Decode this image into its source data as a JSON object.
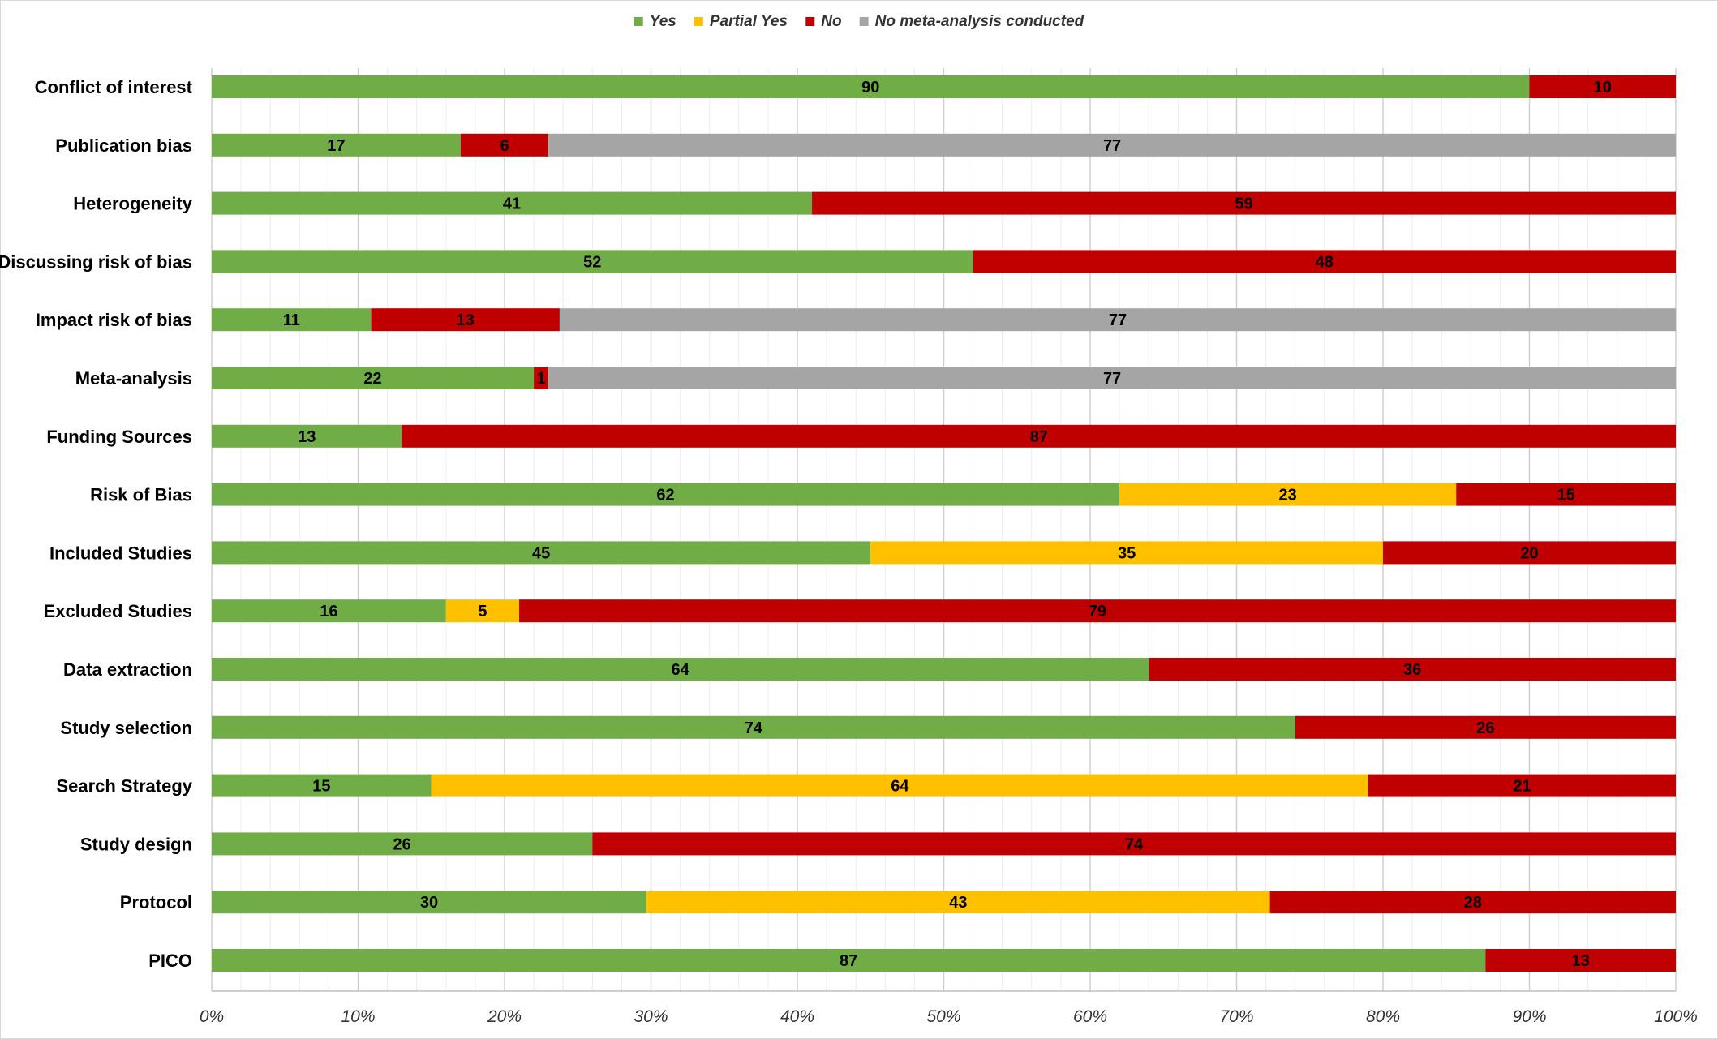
{
  "chart_data": {
    "type": "bar",
    "orientation": "horizontal",
    "stacked": "percent",
    "categories": [
      "Conflict of interest",
      "Publication bias",
      "Heterogeneity",
      "Discussing risk of bias",
      "Impact risk of bias",
      "Meta-analysis",
      "Funding Sources",
      "Risk of Bias",
      "Included Studies",
      "Excluded Studies",
      "Data extraction",
      "Study selection",
      "Search Strategy",
      "Study design",
      "Protocol",
      "PICO"
    ],
    "series": [
      {
        "name": "Yes",
        "color": "#70ad47",
        "values": [
          90,
          17,
          41,
          52,
          11,
          22,
          13,
          62,
          45,
          16,
          64,
          74,
          15,
          26,
          30,
          87
        ]
      },
      {
        "name": "Partial Yes",
        "color": "#ffc000",
        "values": [
          0,
          0,
          0,
          0,
          0,
          0,
          0,
          23,
          35,
          5,
          0,
          0,
          64,
          0,
          43,
          0
        ]
      },
      {
        "name": "No",
        "color": "#c00000",
        "values": [
          10,
          6,
          59,
          48,
          13,
          1,
          87,
          15,
          20,
          79,
          36,
          26,
          21,
          74,
          28,
          13
        ]
      },
      {
        "name": "No meta-analysis conducted",
        "color": "#a5a5a5",
        "values": [
          0,
          77,
          0,
          0,
          77,
          77,
          0,
          0,
          0,
          0,
          0,
          0,
          0,
          0,
          0,
          0
        ]
      }
    ],
    "xlim": [
      0,
      100
    ],
    "x_ticks": [
      "0%",
      "10%",
      "20%",
      "30%",
      "40%",
      "50%",
      "60%",
      "70%",
      "80%",
      "90%",
      "100%"
    ],
    "grid": "vertical",
    "legend_position": "top",
    "xlabel": "",
    "ylabel": "",
    "title": ""
  }
}
